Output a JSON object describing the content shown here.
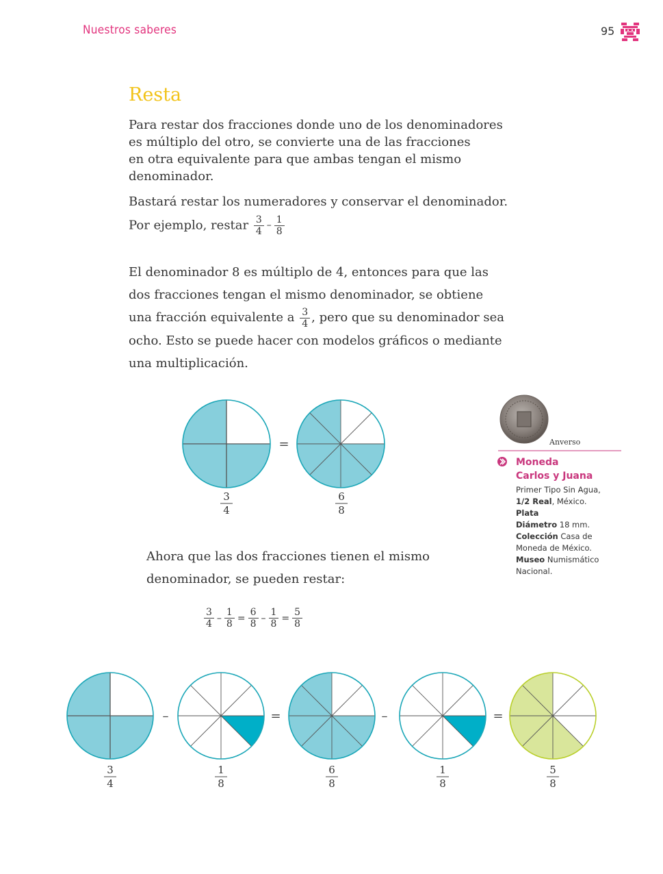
{
  "header": {
    "section": "Nuestros saberes",
    "page_number": "95"
  },
  "title": "Resta",
  "para1": [
    "Para restar dos fracciones donde uno de los denominadores",
    "es múltiplo del otro, se convierte una de las fracciones",
    "en otra equivalente para que ambas tengan el mismo",
    "denominador."
  ],
  "para2_line1": "Bastará restar los numeradores y conservar el denominador.",
  "para2_prefix": "Por ejemplo, restar",
  "example": {
    "a_num": "3",
    "a_den": "4",
    "op": "–",
    "b_num": "1",
    "b_den": "8"
  },
  "para3": {
    "line1": "El denominador 8 es múltiplo de 4, entonces para que las",
    "line2": "dos fracciones tengan el mismo denominador, se obtiene",
    "line3_pre": "una fracción equivalente a",
    "line3_num": "3",
    "line3_den": "4",
    "line3_post": ", pero que su denominador sea",
    "line4": "ocho. Esto se puede hacer con modelos gráficos o mediante",
    "line5": "una multiplicación."
  },
  "diagram1": {
    "equals": "=",
    "left": {
      "num": "3",
      "den": "4",
      "shaded_parts": 3,
      "total_parts": 4
    },
    "right": {
      "num": "6",
      "den": "8",
      "shaded_parts": 6,
      "total_parts": 8
    }
  },
  "para4": [
    "Ahora que las dos fracciones tienen el mismo",
    "denominador, se pueden restar:"
  ],
  "equation": [
    {
      "num": "3",
      "den": "4"
    },
    {
      "op": "–"
    },
    {
      "num": "1",
      "den": "8"
    },
    {
      "op": "="
    },
    {
      "num": "6",
      "den": "8"
    },
    {
      "op": "–"
    },
    {
      "num": "1",
      "den": "8"
    },
    {
      "op": "="
    },
    {
      "num": "5",
      "den": "8"
    }
  ],
  "diagram2": {
    "circles": [
      {
        "num": "3",
        "den": "4",
        "shaded": 3,
        "parts": 4
      },
      {
        "num": "1",
        "den": "8",
        "shaded": 1,
        "parts": 8
      },
      {
        "num": "6",
        "den": "8",
        "shaded": 6,
        "parts": 8
      },
      {
        "num": "1",
        "den": "8",
        "shaded": 1,
        "parts": 8
      },
      {
        "num": "5",
        "den": "8",
        "shaded": 5,
        "parts": 8
      }
    ],
    "operators": [
      "–",
      "=",
      "–",
      "="
    ]
  },
  "coin": {
    "label": "Anverso",
    "title_line1": "Moneda",
    "title_line2": "Carlos y Juana",
    "line1": "Primer Tipo Sin Agua,",
    "line2_bold": "1/2 Real",
    "line2_rest": ", México.",
    "line3_bold": "Plata",
    "line4_bold": "Diámetro",
    "line4_rest": " 18 mm.",
    "line5_bold": "Colección",
    "line5_rest": " Casa de",
    "line6": "Moneda de México.",
    "line7_bold": "Museo",
    "line7_rest": " Numismático",
    "line8": "Nacional."
  },
  "colors": {
    "accent_pink": "#e2337d",
    "title_yellow": "#f2c31a",
    "circle_fill": "#87cfdc",
    "circle_stroke": "#1aa6b7",
    "dark_teal": "#00afc8",
    "result_fill": "#d9e69b",
    "result_stroke": "#b9cf2a"
  }
}
